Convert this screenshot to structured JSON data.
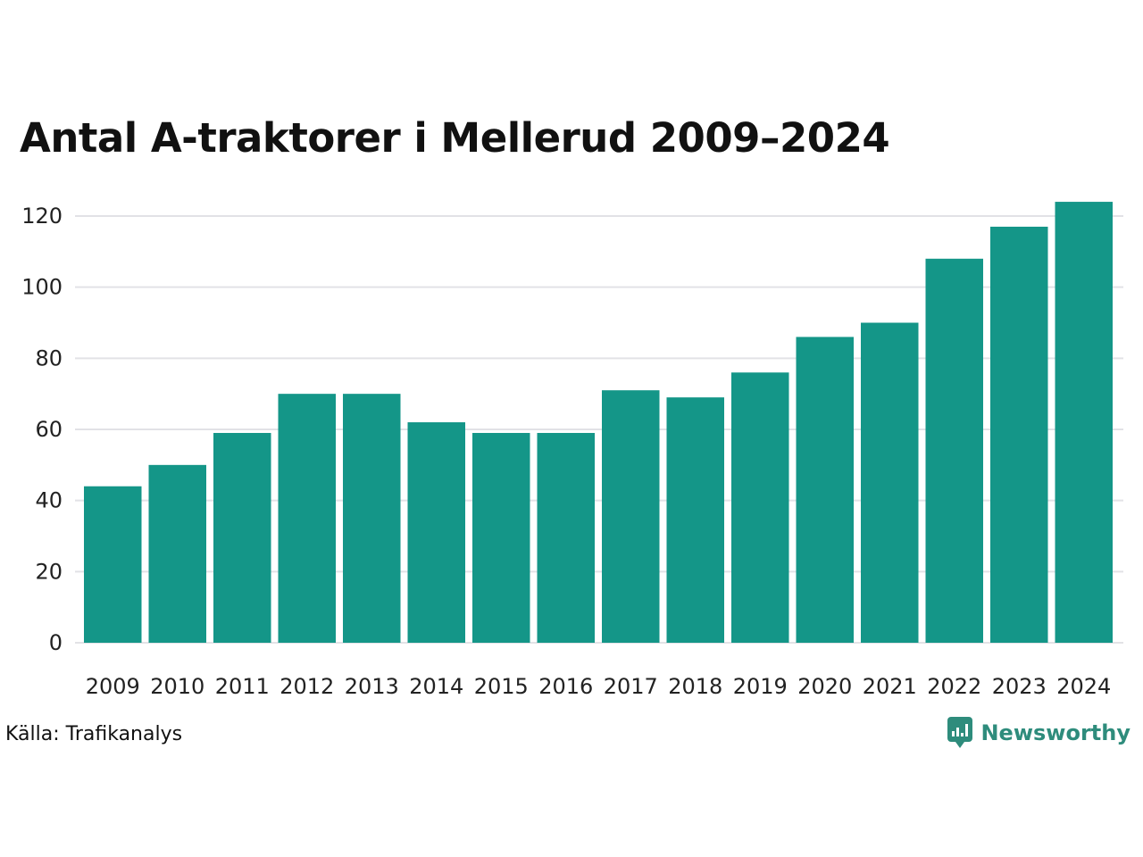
{
  "title": "Antal A-traktorer i Mellerud 2009–2024",
  "source": "Källa: Trafikanalys",
  "brand": {
    "name": "Newsworthy",
    "logo_icon": "newsworthy-logo-icon"
  },
  "colors": {
    "bar": "#149688",
    "grid": "#e2e2e6",
    "brand": "#2e8c7c"
  },
  "chart_data": {
    "type": "bar",
    "title": "Antal A-traktorer i Mellerud 2009–2024",
    "xlabel": "",
    "ylabel": "",
    "categories": [
      "2009",
      "2010",
      "2011",
      "2012",
      "2013",
      "2014",
      "2015",
      "2016",
      "2017",
      "2018",
      "2019",
      "2020",
      "2021",
      "2022",
      "2023",
      "2024"
    ],
    "values": [
      44,
      50,
      59,
      70,
      70,
      62,
      59,
      59,
      71,
      69,
      76,
      86,
      90,
      108,
      117,
      124
    ],
    "ylim": [
      0,
      120
    ],
    "yticks": [
      0,
      20,
      40,
      60,
      80,
      100,
      120
    ],
    "grid": true,
    "legend": "none"
  }
}
